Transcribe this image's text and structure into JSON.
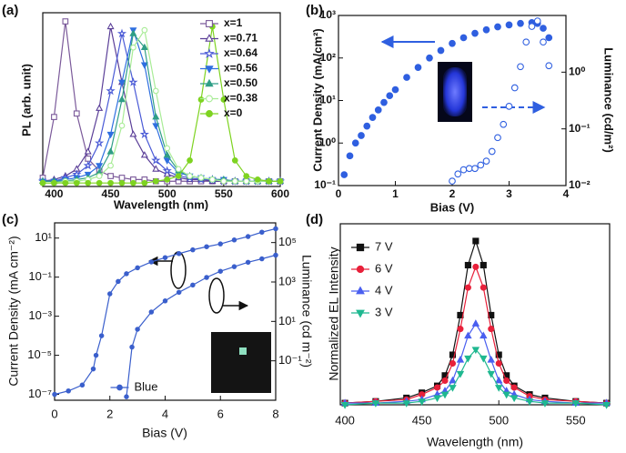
{
  "chart_data": [
    {
      "type": "line",
      "panel": "(a)",
      "xlabel": "Wavelength (nm)",
      "ylabel": "PL (arb. unit)",
      "x": [
        390,
        400,
        410,
        420,
        430,
        440,
        450,
        460,
        470,
        480,
        490,
        500,
        510,
        520,
        530,
        540,
        550,
        560,
        570,
        580,
        590,
        600
      ],
      "xlim": [
        390,
        600
      ],
      "xticks": [
        400,
        450,
        500,
        550,
        600
      ],
      "ylim": [
        0,
        1
      ],
      "legend": "upper right",
      "series": [
        {
          "name": "x=1",
          "color": "#7b5a9a",
          "marker": "square",
          "filled": false,
          "values": [
            0.05,
            0.4,
            0.95,
            0.42,
            0.16,
            0.09,
            0.06,
            0.05,
            0.04,
            0.04,
            0.03,
            0.03,
            0.03,
            0.03,
            0.03,
            0.03,
            0.03,
            0.03,
            0.03,
            0.03,
            0.03,
            0.03
          ]
        },
        {
          "name": "x=0.71",
          "color": "#5b3f98",
          "marker": "triangle",
          "filled": false,
          "values": [
            0.03,
            0.04,
            0.06,
            0.1,
            0.2,
            0.45,
            0.92,
            0.6,
            0.3,
            0.18,
            0.1,
            0.07,
            0.05,
            0.04,
            0.04,
            0.03,
            0.03,
            0.03,
            0.03,
            0.03,
            0.03,
            0.03
          ]
        },
        {
          "name": "x=0.64",
          "color": "#4a5ad6",
          "marker": "star",
          "filled": false,
          "values": [
            0.03,
            0.03,
            0.05,
            0.07,
            0.12,
            0.25,
            0.55,
            0.88,
            0.6,
            0.3,
            0.15,
            0.09,
            0.06,
            0.05,
            0.04,
            0.04,
            0.03,
            0.03,
            0.03,
            0.03,
            0.03,
            0.03
          ]
        },
        {
          "name": "x=0.56",
          "color": "#2f6fe0",
          "marker": "triangle-down",
          "filled": true,
          "values": [
            0.03,
            0.03,
            0.04,
            0.05,
            0.07,
            0.12,
            0.3,
            0.6,
            0.9,
            0.7,
            0.35,
            0.15,
            0.08,
            0.06,
            0.05,
            0.04,
            0.04,
            0.03,
            0.03,
            0.03,
            0.03,
            0.03
          ]
        },
        {
          "name": "x=0.50",
          "color": "#2f9e86",
          "marker": "triangle",
          "filled": true,
          "values": [
            0.03,
            0.03,
            0.03,
            0.04,
            0.05,
            0.08,
            0.2,
            0.5,
            0.88,
            0.8,
            0.4,
            0.18,
            0.09,
            0.06,
            0.05,
            0.04,
            0.04,
            0.03,
            0.03,
            0.03,
            0.03,
            0.03
          ]
        },
        {
          "name": "x=0.38",
          "color": "#a8ec96",
          "marker": "circle",
          "filled": false,
          "values": [
            0.02,
            0.02,
            0.03,
            0.03,
            0.04,
            0.06,
            0.12,
            0.35,
            0.8,
            0.9,
            0.55,
            0.22,
            0.1,
            0.06,
            0.05,
            0.04,
            0.03,
            0.03,
            0.03,
            0.03,
            0.03,
            0.03
          ]
        },
        {
          "name": "x=0",
          "color": "#7ed321",
          "marker": "circle",
          "filled": true,
          "values": [
            0.02,
            0.02,
            0.02,
            0.02,
            0.02,
            0.02,
            0.02,
            0.02,
            0.02,
            0.02,
            0.03,
            0.04,
            0.06,
            0.15,
            0.5,
            0.92,
            0.5,
            0.15,
            0.06,
            0.04,
            0.03,
            0.03
          ]
        }
      ]
    },
    {
      "type": "scatter",
      "panel": "(b)",
      "xlabel": "Bias (V)",
      "ylabel": "Current Density (mA/cm²)",
      "y2label": "Luminance (cd/m²)",
      "xlim": [
        0,
        4
      ],
      "xticks": [
        0,
        1,
        2,
        3,
        4
      ],
      "ylog": true,
      "ylim": [
        0.1,
        1000
      ],
      "yticks": [
        {
          "value": 0.1,
          "label": "10⁻¹"
        },
        {
          "value": 1,
          "label": "10⁰"
        },
        {
          "value": 10,
          "label": "10¹"
        },
        {
          "value": 100,
          "label": "10²"
        },
        {
          "value": 1000,
          "label": "10³"
        }
      ],
      "y2log": true,
      "y2lim": [
        0.01,
        10
      ],
      "y2ticks": [
        {
          "value": 0.01,
          "label": "10⁻²"
        },
        {
          "value": 0.1,
          "label": "10⁻¹"
        },
        {
          "value": 1,
          "label": "10⁰"
        }
      ],
      "series": [
        {
          "color": "#2f5fe0",
          "marker": "circle",
          "filled": true,
          "x": [
            0.1,
            0.2,
            0.3,
            0.4,
            0.5,
            0.6,
            0.7,
            0.8,
            0.9,
            1.0,
            1.2,
            1.4,
            1.6,
            1.8,
            2.0,
            2.2,
            2.4,
            2.6,
            2.8,
            3.0,
            3.2,
            3.4,
            3.5,
            3.6,
            3.7
          ],
          "values": [
            0.18,
            0.5,
            1.0,
            1.5,
            2.5,
            4,
            6,
            9,
            13,
            18,
            35,
            60,
            100,
            150,
            220,
            300,
            380,
            460,
            540,
            600,
            650,
            680,
            650,
            500,
            300
          ]
        },
        {
          "color": "#2f5fe0",
          "marker": "circle",
          "filled": false,
          "axis": "y2",
          "x": [
            2.0,
            2.1,
            2.2,
            2.3,
            2.4,
            2.5,
            2.6,
            2.7,
            2.8,
            2.9,
            3.0,
            3.1,
            3.2,
            3.3,
            3.4,
            3.5,
            3.6,
            3.7
          ],
          "values": [
            0.012,
            0.016,
            0.019,
            0.02,
            0.02,
            0.023,
            0.027,
            0.04,
            0.07,
            0.12,
            0.25,
            0.53,
            1.25,
            3.4,
            6.4,
            8,
            3.4,
            1.3
          ]
        }
      ]
    },
    {
      "type": "line",
      "panel": "(c)",
      "xlabel": "Bias (V)",
      "ylabel": "Current Density (mA cm⁻²)",
      "y2label": "Luminance (cd m⁻²)",
      "xlim": [
        0,
        8
      ],
      "xticks": [
        0,
        2,
        4,
        6,
        8
      ],
      "ylog": true,
      "ylim": [
        5e-08,
        60
      ],
      "yticks": [
        {
          "value": 1e-07,
          "label": "10⁻⁷"
        },
        {
          "value": 1e-05,
          "label": "10⁻⁵"
        },
        {
          "value": 0.001,
          "label": "10⁻³"
        },
        {
          "value": 0.1,
          "label": "10⁻¹"
        },
        {
          "value": 10,
          "label": "10¹"
        }
      ],
      "y2log": true,
      "y2lim": [
        0.001,
        1000000
      ],
      "y2ticks": [
        {
          "value": 0.1,
          "label": "10⁻¹"
        },
        {
          "value": 10,
          "label": "10¹"
        },
        {
          "value": 1000,
          "label": "10³"
        },
        {
          "value": 100000,
          "label": "10⁵"
        }
      ],
      "legend": "lower center",
      "series": [
        {
          "name": "Blue",
          "color": "#3a5fcc",
          "marker": "circle",
          "filled": true,
          "x": [
            0,
            0.5,
            1.0,
            1.4,
            1.5,
            1.7,
            2.0,
            2.3,
            2.6,
            3.0,
            3.5,
            4.0,
            4.5,
            5.0,
            5.5,
            6.0,
            6.5,
            7.0,
            7.5,
            8.0
          ],
          "values": [
            1e-07,
            1.5e-07,
            3e-07,
            2e-06,
            1e-05,
            0.0001,
            0.014,
            0.06,
            0.15,
            0.3,
            0.6,
            1,
            1.6,
            2.5,
            3.6,
            5,
            8,
            12,
            20,
            30
          ]
        },
        {
          "color": "#3a5fcc",
          "marker": "circle",
          "filled": true,
          "axis": "y2",
          "x": [
            2.6,
            2.8,
            3.0,
            3.5,
            4.0,
            4.5,
            5.0,
            5.5,
            6.0,
            6.5,
            7.0,
            7.5,
            8.0
          ],
          "values": [
            0.0015,
            0.5,
            4,
            30,
            110,
            300,
            700,
            1700,
            3500,
            6000,
            10000,
            15000,
            23000
          ]
        }
      ]
    },
    {
      "type": "line",
      "panel": "(d)",
      "xlabel": "Wavelength (nm)",
      "ylabel": "Normalized EL Intensity",
      "x": [
        400,
        420,
        440,
        450,
        460,
        465,
        470,
        475,
        480,
        485,
        490,
        495,
        500,
        505,
        510,
        520,
        530,
        550,
        570
      ],
      "xlim": [
        397,
        572
      ],
      "xticks": [
        400,
        450,
        500,
        550
      ],
      "ylim": [
        0,
        1.05
      ],
      "legend": "upper left",
      "series": [
        {
          "name": "7 V",
          "color": "#111111",
          "marker": "square",
          "filled": true,
          "values": [
            0.01,
            0.02,
            0.04,
            0.07,
            0.11,
            0.17,
            0.29,
            0.52,
            0.81,
            0.95,
            0.81,
            0.52,
            0.29,
            0.17,
            0.11,
            0.06,
            0.04,
            0.02,
            0.01
          ]
        },
        {
          "name": "6 V",
          "color": "#e8203a",
          "marker": "circle",
          "filled": true,
          "values": [
            0.01,
            0.02,
            0.03,
            0.06,
            0.1,
            0.14,
            0.24,
            0.44,
            0.68,
            0.8,
            0.68,
            0.44,
            0.24,
            0.14,
            0.1,
            0.05,
            0.03,
            0.02,
            0.01
          ]
        },
        {
          "name": "4 V",
          "color": "#4a5ff0",
          "marker": "triangle",
          "filled": true,
          "values": [
            0.01,
            0.01,
            0.02,
            0.03,
            0.06,
            0.08,
            0.14,
            0.26,
            0.4,
            0.47,
            0.4,
            0.26,
            0.14,
            0.08,
            0.06,
            0.03,
            0.02,
            0.01,
            0.01
          ]
        },
        {
          "name": "3 V",
          "color": "#1fb890",
          "marker": "triangle-down",
          "filled": true,
          "values": [
            0,
            0.01,
            0.01,
            0.02,
            0.04,
            0.06,
            0.1,
            0.18,
            0.27,
            0.32,
            0.27,
            0.18,
            0.1,
            0.06,
            0.04,
            0.02,
            0.01,
            0.01,
            0
          ]
        }
      ]
    }
  ]
}
